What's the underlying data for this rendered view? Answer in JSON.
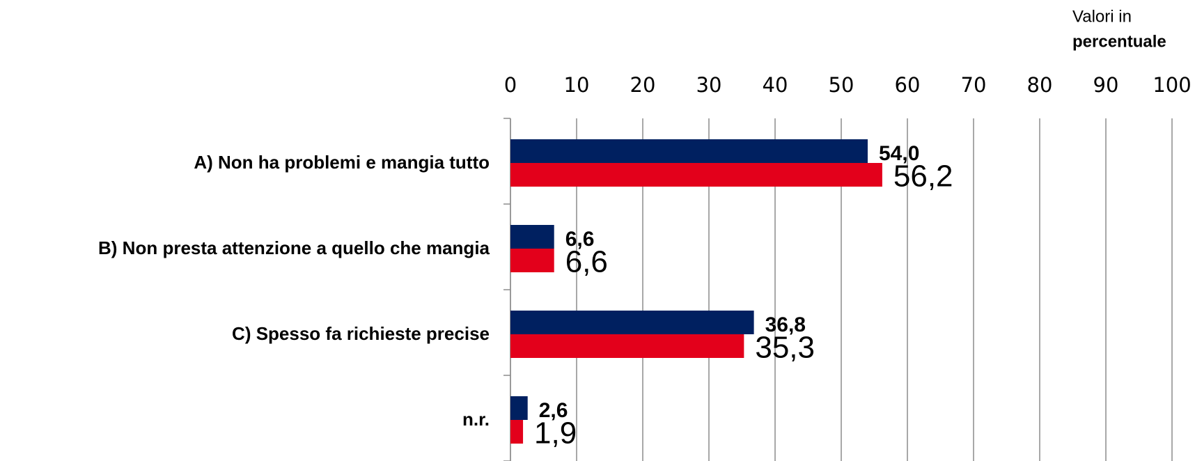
{
  "chart_data": {
    "type": "barh",
    "note": [
      "Valori in",
      "percentuale"
    ],
    "categories": [
      "A) Non ha problemi e mangia tutto",
      "B) Non presta attenzione a quello che mangia",
      "C) Spesso fa richieste precise",
      "n.r."
    ],
    "series": [
      {
        "color": "#002060",
        "values": [
          54.0,
          6.6,
          36.8,
          2.6
        ],
        "value_labels": [
          "54,0",
          "6,6",
          "36,8",
          "2,6"
        ]
      },
      {
        "color": "#e3001b",
        "values": [
          56.2,
          6.6,
          35.3,
          1.9
        ],
        "value_labels": [
          "56,2",
          "6,6",
          "35,3",
          "1,9"
        ]
      }
    ],
    "xlim": [
      0,
      100
    ],
    "xticks": [
      0,
      10,
      20,
      30,
      40,
      50,
      60,
      70,
      80,
      90,
      100
    ],
    "grid": true
  }
}
